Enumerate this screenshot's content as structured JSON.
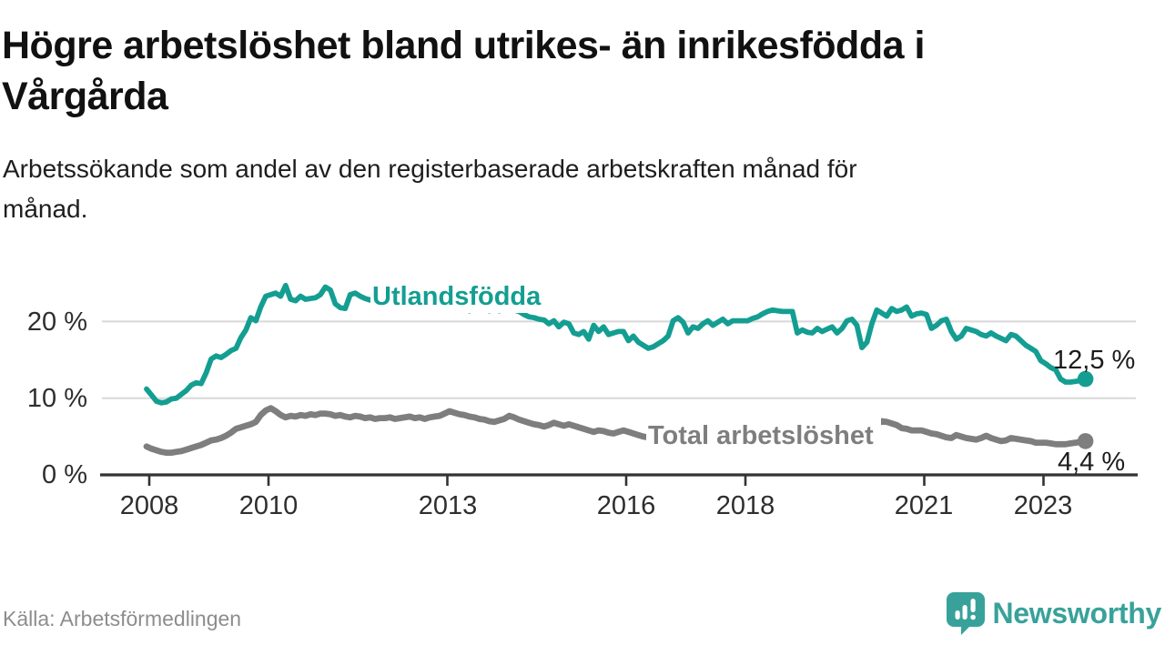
{
  "header": {
    "title": "Högre arbetslöshet bland utrikes- än inrikesfödda i Vårgårda",
    "title_lines": [
      "Högre arbetslöshet bland utrikes- än inrikesfödda i",
      "Vårgårda"
    ],
    "subtitle": "Arbetssökande som andel av den registerbaserade arbetskraften månad för månad.",
    "subtitle_lines": [
      "Arbetssökande som andel av den registerbaserade arbetskraften månad för",
      "månad."
    ]
  },
  "chart_data": {
    "type": "line",
    "title": "Högre arbetslöshet bland utrikes- än inrikesfödda i Vårgårda",
    "subtitle": "Arbetssökande som andel av den registerbaserade arbetskraften månad för månad.",
    "unit": "%",
    "frequency": "monthly",
    "x_start_year": 2008,
    "x_end": "2023-10",
    "xticks": [
      2008,
      2010,
      2013,
      2016,
      2018,
      2021,
      2023
    ],
    "yticks": [
      0,
      10,
      20
    ],
    "ytick_labels": [
      "0 %",
      "10 %",
      "20 %"
    ],
    "ylim": [
      0,
      26
    ],
    "grid": "horizontal-light",
    "colors": {
      "grid": "#d8d8d8",
      "axis": "#333333",
      "tick_text": "#2e2e2e"
    },
    "series": [
      {
        "name": "Utlandsfödda",
        "color": "#149e92",
        "end_value": 12.5,
        "end_label": "12,5 %",
        "values": [
          11.2,
          10.4,
          9.6,
          9.4,
          9.5,
          9.9,
          10.0,
          10.5,
          11.0,
          11.7,
          12.0,
          11.9,
          13.3,
          15.1,
          15.5,
          15.3,
          15.7,
          16.2,
          16.5,
          17.9,
          18.9,
          20.5,
          20.1,
          21.9,
          23.3,
          23.5,
          23.7,
          23.3,
          24.7,
          22.9,
          22.7,
          23.3,
          22.9,
          23.0,
          23.1,
          23.5,
          24.5,
          24.1,
          22.3,
          21.8,
          21.7,
          23.5,
          23.7,
          23.3,
          23.0,
          22.8,
          23.2,
          23.4,
          23.1,
          22.8,
          23.2,
          22.9,
          22.5,
          22.7,
          22.3,
          22.0,
          22.4,
          22.1,
          21.8,
          22.0,
          21.9,
          21.6,
          21.8,
          21.5,
          21.7,
          21.4,
          21.6,
          21.5,
          21.7,
          21.4,
          21.6,
          21.4,
          21.8,
          21.6,
          21.5,
          21.3,
          20.9,
          20.6,
          20.5,
          20.3,
          20.2,
          19.7,
          20.1,
          19.3,
          19.9,
          19.7,
          18.5,
          18.3,
          18.7,
          17.7,
          19.5,
          18.7,
          19.3,
          18.3,
          18.5,
          18.7,
          18.7,
          17.5,
          18.1,
          17.3,
          16.9,
          16.5,
          16.7,
          17.1,
          17.5,
          18.1,
          20.1,
          20.5,
          19.9,
          18.5,
          19.3,
          19.1,
          19.7,
          20.1,
          19.5,
          19.9,
          20.3,
          19.7,
          20.1,
          20.1,
          20.1,
          20.1,
          20.4,
          20.6,
          21.0,
          21.3,
          21.5,
          21.4,
          21.3,
          21.3,
          21.3,
          18.5,
          18.9,
          18.6,
          18.5,
          19.1,
          18.7,
          19.0,
          19.3,
          18.5,
          19.1,
          20.1,
          20.3,
          19.5,
          16.6,
          17.3,
          19.7,
          21.5,
          21.1,
          20.7,
          21.7,
          21.3,
          21.5,
          21.9,
          20.7,
          21.0,
          21.1,
          20.9,
          19.1,
          19.5,
          20.1,
          20.3,
          18.7,
          17.7,
          18.1,
          19.1,
          18.9,
          18.7,
          18.3,
          18.1,
          18.5,
          18.1,
          17.8,
          17.5,
          18.3,
          18.1,
          17.5,
          16.9,
          16.5,
          16.1,
          14.9,
          14.5,
          14.0,
          13.7,
          12.5,
          12.1,
          12.1,
          12.2,
          12.3,
          12.5
        ]
      },
      {
        "name": "Total arbetslöshet",
        "color": "#7e7e7e",
        "end_value": 4.4,
        "end_label": "4,4 %",
        "values": [
          3.7,
          3.4,
          3.2,
          3.0,
          2.9,
          2.9,
          3.0,
          3.1,
          3.3,
          3.5,
          3.7,
          3.9,
          4.2,
          4.5,
          4.6,
          4.8,
          5.1,
          5.5,
          6.0,
          6.2,
          6.4,
          6.6,
          6.9,
          7.8,
          8.4,
          8.7,
          8.3,
          7.8,
          7.5,
          7.7,
          7.6,
          7.8,
          7.7,
          7.9,
          7.8,
          8.0,
          8.0,
          7.9,
          7.7,
          7.8,
          7.6,
          7.5,
          7.7,
          7.6,
          7.4,
          7.5,
          7.3,
          7.4,
          7.4,
          7.5,
          7.3,
          7.4,
          7.5,
          7.6,
          7.4,
          7.5,
          7.3,
          7.5,
          7.6,
          7.7,
          8.0,
          8.3,
          8.1,
          7.9,
          7.8,
          7.6,
          7.5,
          7.3,
          7.2,
          7.0,
          6.9,
          7.1,
          7.3,
          7.7,
          7.5,
          7.2,
          7.0,
          6.8,
          6.6,
          6.5,
          6.3,
          6.5,
          6.8,
          6.6,
          6.4,
          6.6,
          6.4,
          6.2,
          6.0,
          5.8,
          5.6,
          5.8,
          5.7,
          5.5,
          5.4,
          5.6,
          5.8,
          5.6,
          5.4,
          5.2,
          5.0,
          4.9,
          4.8,
          4.9,
          5.0,
          4.9,
          4.8,
          4.7,
          4.6,
          4.5,
          4.4,
          4.5,
          4.4,
          4.3,
          4.4,
          4.3,
          4.2,
          4.3,
          4.2,
          4.3,
          4.2,
          4.1,
          4.2,
          4.1,
          4.0,
          4.1,
          4.0,
          4.1,
          4.2,
          4.1,
          4.2,
          4.3,
          4.4,
          4.5,
          4.4,
          4.5,
          4.6,
          4.5,
          4.6,
          4.7,
          4.6,
          4.7,
          4.8,
          4.9,
          5.0,
          5.2,
          5.9,
          6.6,
          7.0,
          6.9,
          6.7,
          6.5,
          6.1,
          6.0,
          5.8,
          5.8,
          5.8,
          5.6,
          5.4,
          5.3,
          5.1,
          4.9,
          4.8,
          5.2,
          5.0,
          4.8,
          4.7,
          4.6,
          4.8,
          5.1,
          4.8,
          4.6,
          4.4,
          4.5,
          4.8,
          4.7,
          4.6,
          4.5,
          4.4,
          4.2,
          4.2,
          4.2,
          4.1,
          4.0,
          4.0,
          4.0,
          4.1,
          4.2,
          4.3,
          4.4
        ]
      }
    ]
  },
  "footer": {
    "source": "Källa: Arbetsförmedlingen",
    "brand": "Newsworthy",
    "brand_color": "#38a29a"
  }
}
